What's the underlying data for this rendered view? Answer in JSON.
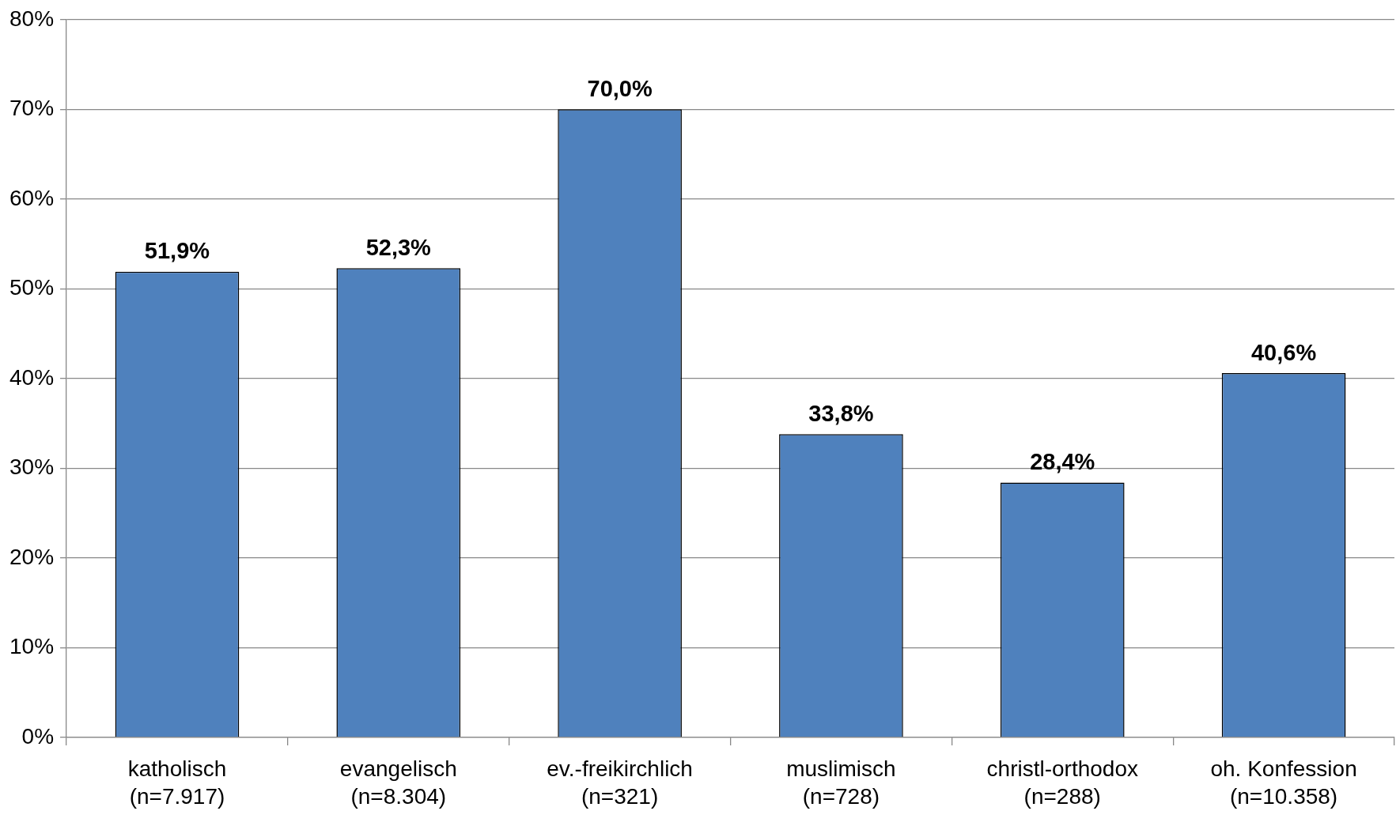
{
  "chart_data": {
    "type": "bar",
    "categories": [
      "katholisch\n(n=7.917)",
      "evangelisch\n(n=8.304)",
      "ev.-freikirchlich\n(n=321)",
      "muslimisch\n(n=728)",
      "christl-orthodox\n(n=288)",
      "oh. Konfession\n(n=10.358)"
    ],
    "values": [
      51.9,
      52.3,
      70.0,
      33.8,
      28.4,
      40.6
    ],
    "value_labels": [
      "51,9%",
      "52,3%",
      "70,0%",
      "33,8%",
      "28,4%",
      "40,6%"
    ],
    "color": "#4f81bd",
    "ylim": [
      0,
      80
    ],
    "yticks": [
      {
        "value": 0,
        "label": "0%"
      },
      {
        "value": 10,
        "label": "10%"
      },
      {
        "value": 20,
        "label": "20%"
      },
      {
        "value": 30,
        "label": "30%"
      },
      {
        "value": 40,
        "label": "40%"
      },
      {
        "value": 50,
        "label": "50%"
      },
      {
        "value": 60,
        "label": "60%"
      },
      {
        "value": 70,
        "label": "70%"
      },
      {
        "value": 80,
        "label": "80%"
      }
    ],
    "grid": "y",
    "legend": false
  }
}
